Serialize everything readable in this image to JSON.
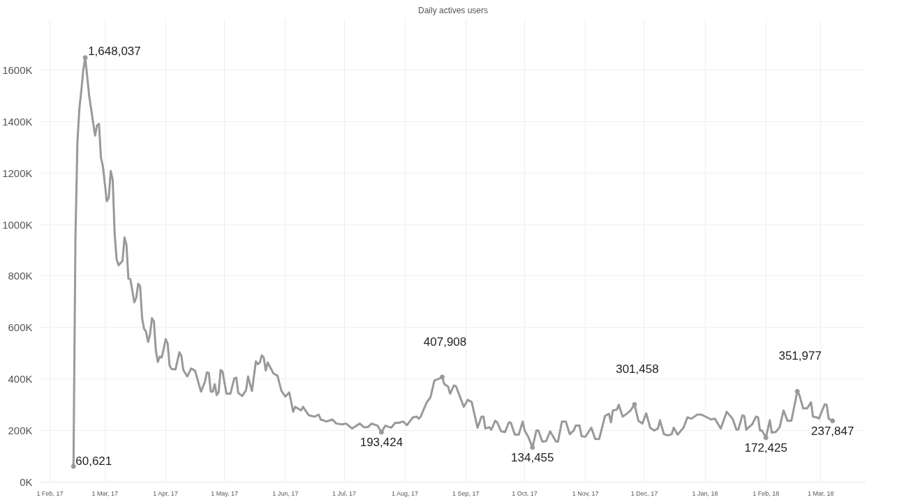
{
  "chart_data": {
    "type": "line",
    "title": "Daily actives users",
    "x": [
      "2017-02-13",
      "2017-02-14",
      "2017-02-15",
      "2017-02-16",
      "2017-02-17",
      "2017-02-18",
      "2017-02-19",
      "2017-02-21",
      "2017-02-24",
      "2017-02-25",
      "2017-02-26",
      "2017-02-27",
      "2017-02-28",
      "2017-03-02",
      "2017-03-03",
      "2017-03-04",
      "2017-03-05",
      "2017-03-06",
      "2017-03-07",
      "2017-03-08",
      "2017-03-10",
      "2017-03-11",
      "2017-03-12",
      "2017-03-13",
      "2017-03-14",
      "2017-03-16",
      "2017-03-17",
      "2017-03-18",
      "2017-03-19",
      "2017-03-20",
      "2017-03-21",
      "2017-03-22",
      "2017-03-23",
      "2017-03-24",
      "2017-03-25",
      "2017-03-26",
      "2017-03-27",
      "2017-03-28",
      "2017-03-29",
      "2017-03-30",
      "2017-03-31",
      "2017-04-01",
      "2017-04-02",
      "2017-04-03",
      "2017-04-04",
      "2017-04-06",
      "2017-04-08",
      "2017-04-09",
      "2017-04-10",
      "2017-04-12",
      "2017-04-14",
      "2017-04-16",
      "2017-04-19",
      "2017-04-21",
      "2017-04-22",
      "2017-04-23",
      "2017-04-24",
      "2017-04-25",
      "2017-04-26",
      "2017-04-27",
      "2017-04-28",
      "2017-04-29",
      "2017-04-30",
      "2017-05-02",
      "2017-05-04",
      "2017-05-06",
      "2017-05-07",
      "2017-05-08",
      "2017-05-10",
      "2017-05-12",
      "2017-05-13",
      "2017-05-15",
      "2017-05-17",
      "2017-05-18",
      "2017-05-19",
      "2017-05-20",
      "2017-05-21",
      "2017-05-22",
      "2017-05-23",
      "2017-05-26",
      "2017-05-28",
      "2017-05-30",
      "2017-06-01",
      "2017-06-03",
      "2017-06-05",
      "2017-06-06",
      "2017-06-09",
      "2017-06-10",
      "2017-06-13",
      "2017-06-16",
      "2017-06-18",
      "2017-06-19",
      "2017-06-22",
      "2017-06-25",
      "2017-06-27",
      "2017-06-30",
      "2017-07-02",
      "2017-07-05",
      "2017-07-09",
      "2017-07-11",
      "2017-07-13",
      "2017-07-15",
      "2017-07-18",
      "2017-07-20",
      "2017-07-22",
      "2017-07-25",
      "2017-07-27",
      "2017-07-29",
      "2017-07-31",
      "2017-08-02",
      "2017-08-05",
      "2017-08-07",
      "2017-08-08",
      "2017-08-09",
      "2017-08-12",
      "2017-08-14",
      "2017-08-16",
      "2017-08-18",
      "2017-08-20",
      "2017-08-21",
      "2017-08-23",
      "2017-08-24",
      "2017-08-26",
      "2017-08-27",
      "2017-08-29",
      "2017-08-31",
      "2017-09-02",
      "2017-09-04",
      "2017-09-07",
      "2017-09-09",
      "2017-09-10",
      "2017-09-11",
      "2017-09-13",
      "2017-09-14",
      "2017-09-16",
      "2017-09-17",
      "2017-09-19",
      "2017-09-21",
      "2017-09-23",
      "2017-09-24",
      "2017-09-26",
      "2017-09-28",
      "2017-09-30",
      "2017-10-01",
      "2017-10-03",
      "2017-10-05",
      "2017-10-07",
      "2017-10-08",
      "2017-10-10",
      "2017-10-12",
      "2017-10-14",
      "2017-10-17",
      "2017-10-18",
      "2017-10-20",
      "2017-10-22",
      "2017-10-24",
      "2017-10-26",
      "2017-10-27",
      "2017-10-29",
      "2017-10-30",
      "2017-11-01",
      "2017-11-04",
      "2017-11-06",
      "2017-11-08",
      "2017-11-11",
      "2017-11-13",
      "2017-11-14",
      "2017-11-15",
      "2017-11-17",
      "2017-11-18",
      "2017-11-20",
      "2017-11-22",
      "2017-11-24",
      "2017-11-26",
      "2017-11-28",
      "2017-11-30",
      "2017-12-02",
      "2017-12-04",
      "2017-12-06",
      "2017-12-08",
      "2017-12-09",
      "2017-12-11",
      "2017-12-13",
      "2017-12-15",
      "2017-12-16",
      "2017-12-18",
      "2017-12-21",
      "2017-12-23",
      "2017-12-25",
      "2017-12-28",
      "2017-12-30",
      "2018-01-02",
      "2018-01-04",
      "2018-01-06",
      "2018-01-09",
      "2018-01-12",
      "2018-01-15",
      "2018-01-17",
      "2018-01-18",
      "2018-01-20",
      "2018-01-21",
      "2018-01-22",
      "2018-01-23",
      "2018-01-25",
      "2018-01-27",
      "2018-01-28",
      "2018-01-29",
      "2018-01-30",
      "2018-02-01",
      "2018-02-03",
      "2018-02-04",
      "2018-02-06",
      "2018-02-08",
      "2018-02-10",
      "2018-02-12",
      "2018-02-14",
      "2018-02-17",
      "2018-02-18",
      "2018-02-20",
      "2018-02-22",
      "2018-02-24",
      "2018-02-25",
      "2018-02-27",
      "2018-02-28",
      "2018-03-03",
      "2018-03-04",
      "2018-03-05",
      "2018-03-07"
    ],
    "series": [
      {
        "color": "#999999",
        "values": [
          60621,
          950000,
          1320000,
          1450000,
          1520000,
          1600000,
          1648037,
          1500000,
          1345000,
          1385000,
          1391000,
          1260000,
          1225000,
          1090000,
          1105000,
          1208000,
          1173000,
          962000,
          865000,
          842000,
          859000,
          950000,
          922000,
          790000,
          788000,
          698000,
          716000,
          770000,
          760000,
          636000,
          595000,
          584000,
          544000,
          572000,
          636000,
          624000,
          510000,
          466000,
          487000,
          484000,
          518000,
          555000,
          538000,
          452000,
          439000,
          437000,
          504000,
          490000,
          435000,
          410000,
          441000,
          432000,
          351000,
          389000,
          426000,
          424000,
          351000,
          351000,
          380000,
          338000,
          349000,
          435000,
          429000,
          343000,
          343000,
          403000,
          405000,
          346000,
          334000,
          357000,
          410000,
          353000,
          469000,
          458000,
          464000,
          492000,
          484000,
          433000,
          464000,
          421000,
          413000,
          354000,
          332000,
          348000,
          273000,
          292000,
          278000,
          292000,
          259000,
          254000,
          262000,
          243000,
          235000,
          243000,
          227000,
          224000,
          227000,
          208000,
          227000,
          213000,
          213000,
          227000,
          219000,
          193424,
          219000,
          211000,
          230000,
          230000,
          235000,
          221000,
          251000,
          254000,
          246000,
          254000,
          308000,
          329000,
          394000,
          400000,
          407908,
          381000,
          370000,
          343000,
          375000,
          372000,
          332000,
          292000,
          319000,
          311000,
          211000,
          254000,
          254000,
          208000,
          213000,
          203000,
          238000,
          232000,
          197000,
          194000,
          232000,
          230000,
          184000,
          184000,
          235000,
          200000,
          173000,
          134455,
          200000,
          200000,
          157000,
          159000,
          197000,
          157000,
          157000,
          235000,
          235000,
          186000,
          200000,
          219000,
          219000,
          178000,
          176000,
          211000,
          167000,
          167000,
          257000,
          265000,
          232000,
          278000,
          281000,
          300000,
          254000,
          265000,
          278000,
          301458,
          238000,
          227000,
          267000,
          211000,
          200000,
          208000,
          240000,
          186000,
          181000,
          186000,
          211000,
          184000,
          211000,
          251000,
          246000,
          262000,
          262000,
          251000,
          243000,
          246000,
          208000,
          273000,
          246000,
          203000,
          205000,
          259000,
          256000,
          203000,
          211000,
          224000,
          254000,
          251000,
          200000,
          200000,
          172425,
          240000,
          192000,
          194000,
          213000,
          278000,
          238000,
          238000,
          351977,
          340000,
          286000,
          286000,
          310000,
          254000,
          251000,
          246000,
          302000,
          300000,
          246000,
          237847
        ]
      }
    ],
    "annotations": [
      {
        "text": "60,621",
        "x": "2017-02-13",
        "y": 60621
      },
      {
        "text": "1,648,037",
        "x": "2017-02-19",
        "y": 1648037
      },
      {
        "text": "193,424",
        "x": "2017-07-20",
        "y": 193424
      },
      {
        "text": "407,908",
        "x": "2017-08-20",
        "y": 407908
      },
      {
        "text": "134,455",
        "x": "2017-10-05",
        "y": 134455
      },
      {
        "text": "301,458",
        "x": "2017-11-26",
        "y": 301458
      },
      {
        "text": "172,425",
        "x": "2018-02-01",
        "y": 172425
      },
      {
        "text": "351,977",
        "x": "2018-02-17",
        "y": 351977
      },
      {
        "text": "237,847",
        "x": "2018-03-07",
        "y": 237847
      }
    ],
    "xlim": [
      "2017-01-27",
      "2018-03-24"
    ],
    "xticks": [
      {
        "value": "2017-02-01",
        "label": "1 Feb, 17"
      },
      {
        "value": "2017-03-01",
        "label": "1 Mar, 17"
      },
      {
        "value": "2017-04-01",
        "label": "1 Apr, 17"
      },
      {
        "value": "2017-05-01",
        "label": "1 May, 17"
      },
      {
        "value": "2017-06-01",
        "label": "1 Jun, 17"
      },
      {
        "value": "2017-07-01",
        "label": "1 Jul, 17"
      },
      {
        "value": "2017-08-01",
        "label": "1 Aug, 17"
      },
      {
        "value": "2017-09-01",
        "label": "1 Sep, 17"
      },
      {
        "value": "2017-10-01",
        "label": "1 Oct, 17"
      },
      {
        "value": "2017-11-01",
        "label": "1 Nov, 17"
      },
      {
        "value": "2017-12-01",
        "label": "1 Dec, 17"
      },
      {
        "value": "2018-01-01",
        "label": "1 Jan, 18"
      },
      {
        "value": "2018-02-01",
        "label": "1 Feb, 18"
      },
      {
        "value": "2018-03-01",
        "label": "1 Mar, 18"
      }
    ],
    "ylim": [
      0,
      1800000
    ],
    "yticks": [
      {
        "value": 0,
        "label": "0K"
      },
      {
        "value": 200000,
        "label": "200K"
      },
      {
        "value": 400000,
        "label": "400K"
      },
      {
        "value": 600000,
        "label": "600K"
      },
      {
        "value": 800000,
        "label": "800K"
      },
      {
        "value": 1000000,
        "label": "1000K"
      },
      {
        "value": 1200000,
        "label": "1200K"
      },
      {
        "value": 1400000,
        "label": "1400K"
      },
      {
        "value": 1600000,
        "label": "1600K"
      }
    ],
    "grid": true,
    "marker": "none",
    "line_style": "solid"
  }
}
